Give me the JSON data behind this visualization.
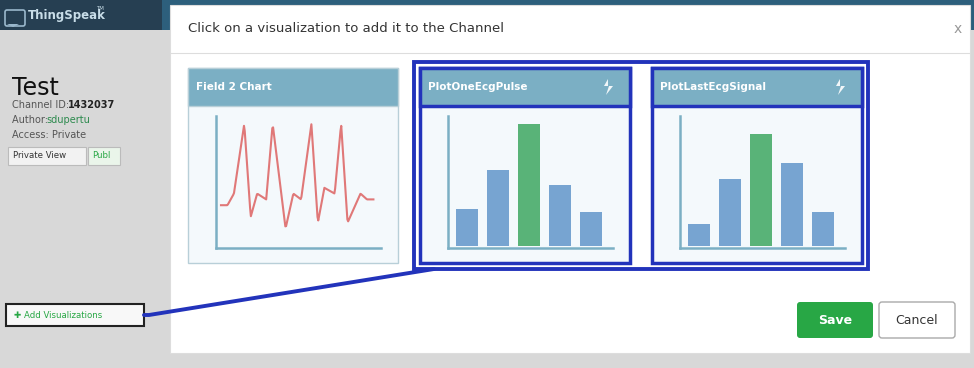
{
  "fig_width": 9.74,
  "fig_height": 3.68,
  "dpi": 100,
  "bg_color": "#e8e8e8",
  "navbar_color": "#2d5f7c",
  "sidebar_color": "#d0d0d0",
  "modal_bg": "#ffffff",
  "dialog_title": "Click on a visualization to add it to the Channel",
  "dialog_title_color": "#333333",
  "dialog_title_fontsize": 9.5,
  "card_header_color": "#7bafc4",
  "card_border_color_normal": "#b8cfd8",
  "card_border_color_selected": "#2233bb",
  "card_bg": "#f4f9fc",
  "card_titles": [
    "Field 2 Chart",
    "PlotOneEcgPulse",
    "PlotLastEcgSignal"
  ],
  "card_title_fontsize": 7.5,
  "ecg_color": "#e07878",
  "bar_blue_color": "#6699cc",
  "bar_green_color": "#44aa66",
  "axis_color": "#7bafc4",
  "save_btn_color": "#28a745",
  "save_btn_text": "Save",
  "cancel_btn_text": "Cancel",
  "btn_fontsize": 9,
  "add_viz_text": "✚ Add Visualizations",
  "add_viz_color": "#28a745",
  "selected_border_color": "#2233bb",
  "tab_private": "Private View",
  "tab_public": "Publ"
}
